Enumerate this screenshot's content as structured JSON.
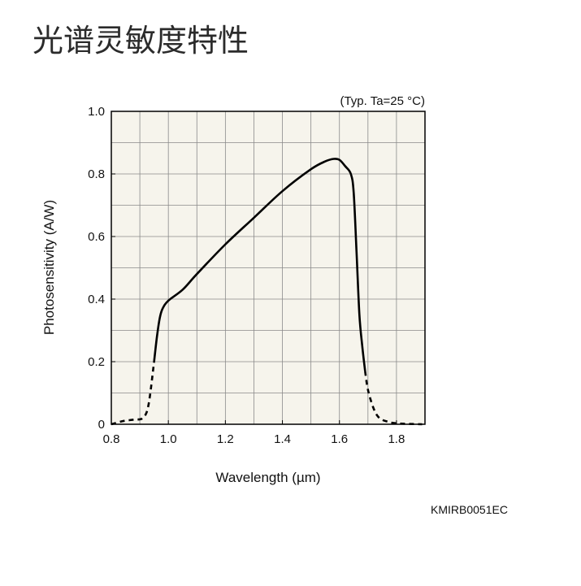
{
  "page": {
    "title": "光谱灵敏度特性",
    "figure_code": "KMIRB0051EC"
  },
  "chart_data": {
    "type": "line",
    "title": "",
    "annotation": "(Typ. Ta=25 °C)",
    "xlabel": "Wavelength (µm)",
    "ylabel": "Photosensitivity (A/W)",
    "xlim": [
      0.8,
      1.9
    ],
    "ylim": [
      0,
      1.0
    ],
    "x_ticks": [
      0.8,
      1.0,
      1.2,
      1.4,
      1.6,
      1.8
    ],
    "x_tick_labels": [
      "0.8",
      "1.0",
      "1.2",
      "1.4",
      "1.6",
      "1.8"
    ],
    "y_ticks": [
      0,
      0.2,
      0.4,
      0.6,
      0.8,
      1.0
    ],
    "y_tick_labels": [
      "0",
      "0.2",
      "0.4",
      "0.6",
      "0.8",
      "1.0"
    ],
    "grid": true,
    "grid_step_x": 0.1,
    "grid_step_y": 0.1,
    "background_color": "#f6f4ec",
    "line_color": "#000000",
    "series": [
      {
        "style": "dashed",
        "x": [
          0.8,
          0.84,
          0.88,
          0.91,
          0.93,
          0.95
        ],
        "y": [
          0.0,
          0.01,
          0.015,
          0.02,
          0.06,
          0.2
        ]
      },
      {
        "style": "solid",
        "x": [
          0.95,
          0.96,
          0.97,
          0.98,
          1.0,
          1.05,
          1.1,
          1.2,
          1.3,
          1.4,
          1.5,
          1.55,
          1.58,
          1.6,
          1.62,
          1.64,
          1.65,
          1.66,
          1.67,
          1.68,
          1.69
        ],
        "y": [
          0.2,
          0.28,
          0.34,
          0.37,
          0.395,
          0.43,
          0.48,
          0.575,
          0.66,
          0.745,
          0.815,
          0.84,
          0.848,
          0.845,
          0.825,
          0.8,
          0.74,
          0.55,
          0.35,
          0.25,
          0.17
        ]
      },
      {
        "style": "dashed",
        "x": [
          1.69,
          1.7,
          1.72,
          1.74,
          1.77,
          1.8,
          1.85,
          1.89
        ],
        "y": [
          0.17,
          0.11,
          0.05,
          0.02,
          0.008,
          0.003,
          0.001,
          0.0
        ]
      }
    ]
  }
}
